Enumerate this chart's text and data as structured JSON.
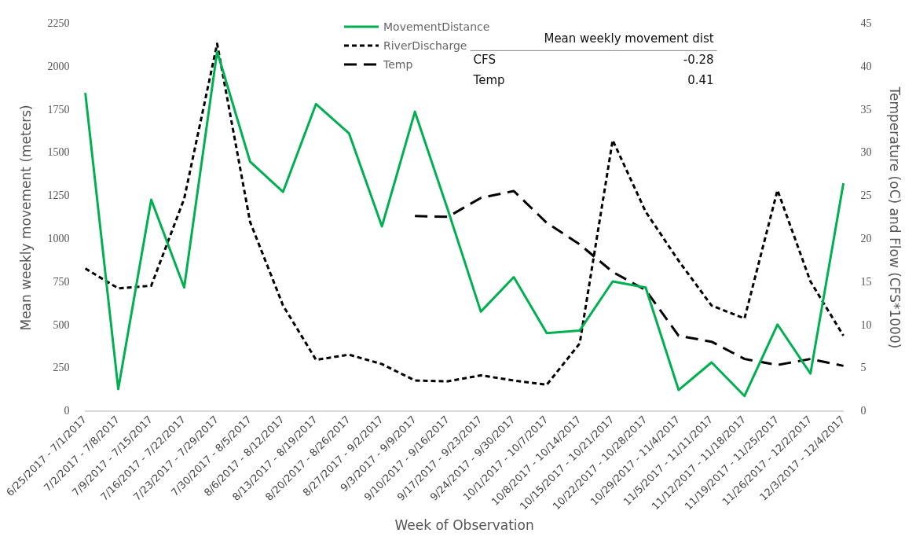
{
  "chart_data": {
    "type": "line",
    "xlabel": "Week of Observation",
    "ylabel": "Mean weekly movement (meters)",
    "y2label": "Temperature (oC) and Flow (CFS*1000)",
    "categories": [
      "6/25/2017 - 7/1/2017",
      "7/2/2017 - 7/8/2017",
      "7/9/2017 - 7/15/2017",
      "7/16/2017 - 7/22/2017",
      "7/23/2017 - 7/29/2017",
      "7/30/2017 - 8/5/2017",
      "8/6/2017 - 8/12/2017",
      "8/13/2017 - 8/19/2017",
      "8/20/2017 - 8/26/2017",
      "8/27/2017 - 9/2/2017",
      "9/3/2017 - 9/9/2017",
      "9/10/2017 - 9/16/2017",
      "9/17/2017 - 9/23/2017",
      "9/24/2017 - 9/30/2017",
      "10/1/2017 - 10/7/2017",
      "10/8/2017 - 10/14/2017",
      "10/15/2017 - 10/21/2017",
      "10/22/2017 - 10/28/2017",
      "10/29/2017 - 11/4/2017",
      "11/5/2017 - 11/11/2017",
      "11/12/2017 - 11/18/2017",
      "11/19/2017 - 11/25/2017",
      "11/26/2017 - 12/2/2017",
      "12/3/2017 - 12/4/2017"
    ],
    "series": [
      {
        "name": "MovementDistance",
        "color": "#00b050",
        "line_style": "solid",
        "values": [
          1850,
          130,
          1230,
          720,
          2090,
          1450,
          1275,
          1785,
          1615,
          1075,
          1740,
          1170,
          580,
          780,
          455,
          470,
          755,
          720,
          125,
          285,
          90,
          505,
          220,
          1325
        ]
      },
      {
        "name": "RiverDischarge",
        "color": "#000000",
        "line_style": "dotted",
        "axis": "y2",
        "values": [
          16.6,
          14.3,
          14.6,
          24.7,
          42.7,
          22,
          12.3,
          6,
          6.6,
          5.5,
          3.6,
          3.5,
          4.2,
          3.6,
          3.1,
          7.9,
          31.5,
          23.2,
          17.5,
          12.3,
          10.8,
          25.7,
          15.1,
          8.8
        ]
      },
      {
        "name": "Temp",
        "color": "#000000",
        "line_style": "dashed",
        "axis": "y2",
        "values": [
          null,
          null,
          null,
          null,
          null,
          null,
          null,
          null,
          null,
          null,
          22.7,
          22.6,
          24.8,
          25.6,
          21.9,
          19.4,
          16.2,
          14.1,
          8.8,
          8.1,
          6.1,
          5.4,
          6.1,
          5.3
        ]
      }
    ],
    "ylim": [
      0,
      2250
    ],
    "yticks": [
      0,
      250,
      500,
      750,
      1000,
      1250,
      1500,
      1750,
      2000,
      2250
    ],
    "y2lim": [
      0,
      45
    ],
    "y2ticks": [
      0,
      5,
      10,
      15,
      20,
      25,
      30,
      35,
      40,
      45
    ],
    "grid": false,
    "legend": "top",
    "marker": "none",
    "annotations": [
      "Mean weekly movement dist",
      "CFS",
      "-0.28",
      "Temp",
      "0.41"
    ]
  }
}
